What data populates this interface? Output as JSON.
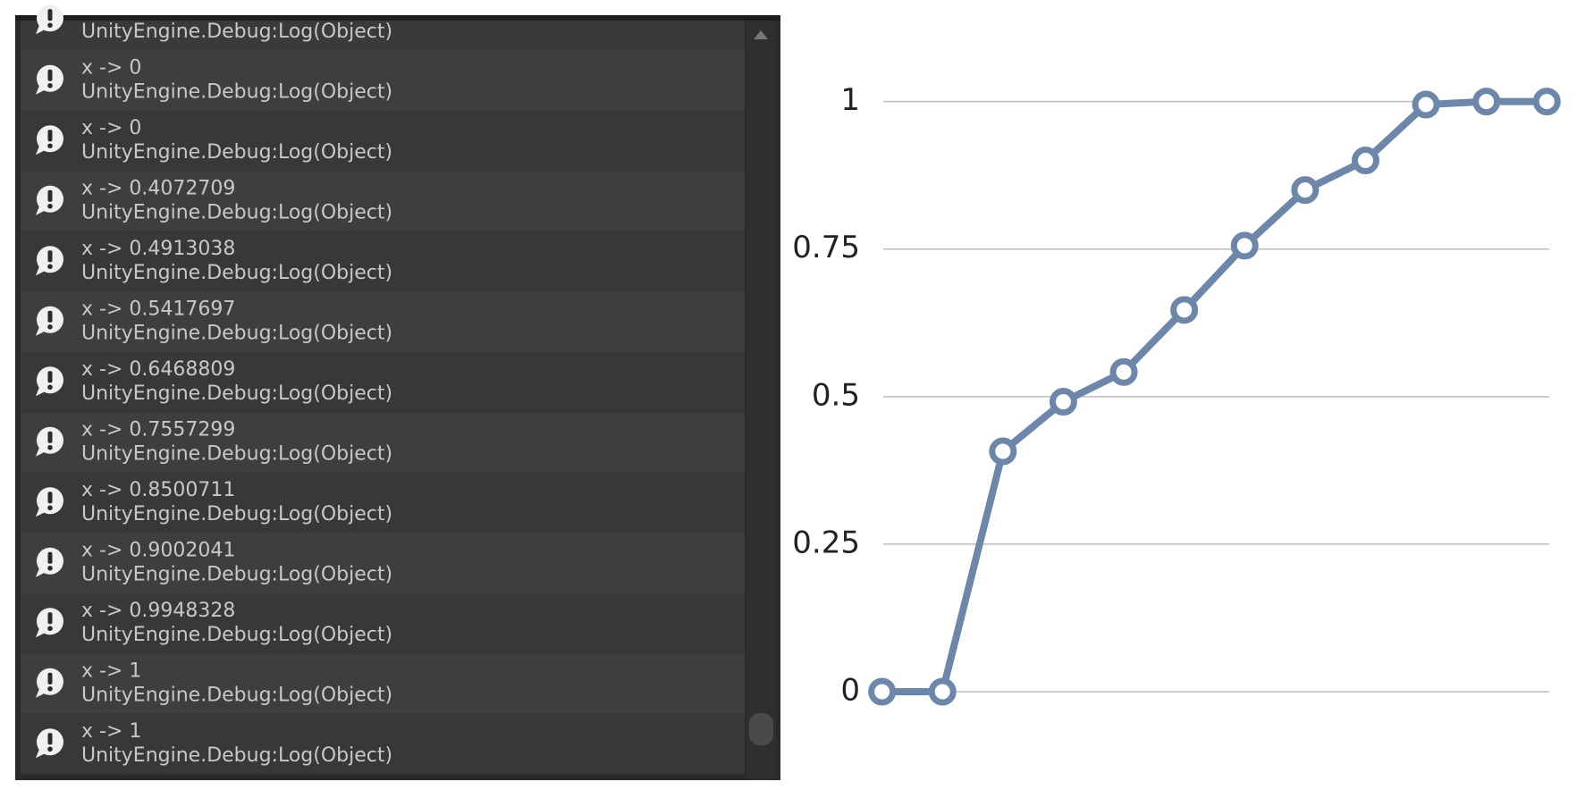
{
  "console": {
    "top_row_source": "UnityEngine.Debug:Log(Object)",
    "rows": [
      {
        "message": "x -> 0",
        "source": "UnityEngine.Debug:Log(Object)"
      },
      {
        "message": "x -> 0",
        "source": "UnityEngine.Debug:Log(Object)"
      },
      {
        "message": "x -> 0.4072709",
        "source": "UnityEngine.Debug:Log(Object)"
      },
      {
        "message": "x -> 0.4913038",
        "source": "UnityEngine.Debug:Log(Object)"
      },
      {
        "message": "x -> 0.5417697",
        "source": "UnityEngine.Debug:Log(Object)"
      },
      {
        "message": "x -> 0.6468809",
        "source": "UnityEngine.Debug:Log(Object)"
      },
      {
        "message": "x -> 0.7557299",
        "source": "UnityEngine.Debug:Log(Object)"
      },
      {
        "message": "x -> 0.8500711",
        "source": "UnityEngine.Debug:Log(Object)"
      },
      {
        "message": "x -> 0.9002041",
        "source": "UnityEngine.Debug:Log(Object)"
      },
      {
        "message": "x -> 0.9948328",
        "source": "UnityEngine.Debug:Log(Object)"
      },
      {
        "message": "x -> 1",
        "source": "UnityEngine.Debug:Log(Object)"
      },
      {
        "message": "x -> 1",
        "source": "UnityEngine.Debug:Log(Object)"
      }
    ]
  },
  "chart_data": {
    "type": "line",
    "categories": [
      null,
      null,
      null,
      null,
      null,
      null,
      null,
      null,
      null,
      null,
      null,
      null
    ],
    "values": [
      0,
      0,
      0.4072709,
      0.4913038,
      0.5417697,
      0.6468809,
      0.7557299,
      0.8500711,
      0.9002041,
      0.9948328,
      1,
      1
    ],
    "color": "#6d87aa",
    "ylim": [
      0,
      1
    ],
    "yticks": [
      0,
      0.25,
      0.5,
      0.75,
      1
    ],
    "grid": true
  }
}
